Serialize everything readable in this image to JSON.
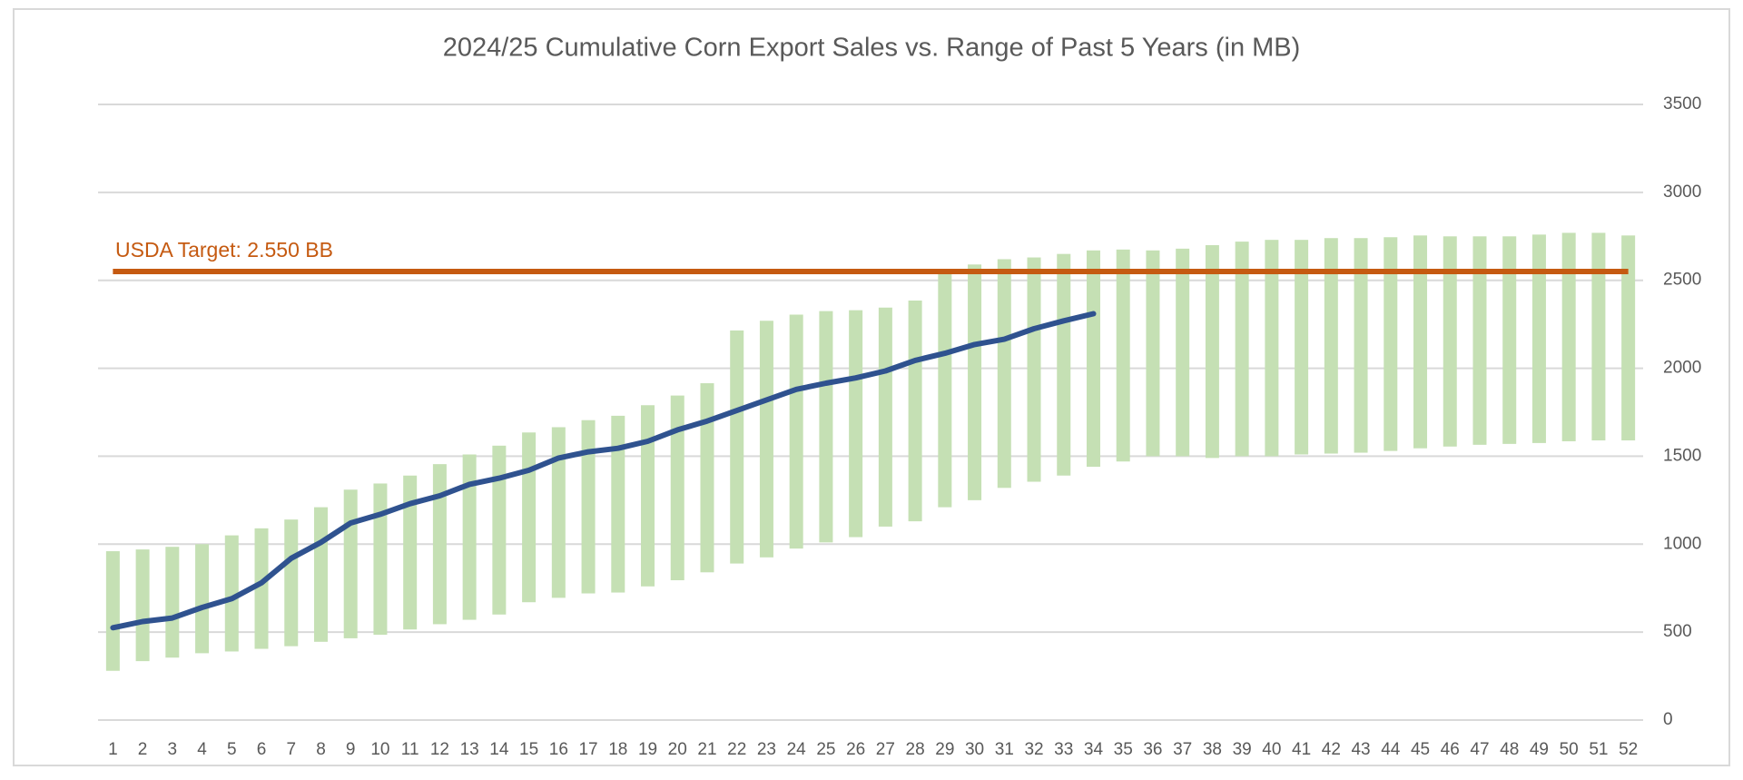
{
  "chart_data": {
    "type": "range_bar_line",
    "title": "2024/25 Cumulative Corn Export Sales vs. Range of Past 5 Years (in MB)",
    "categories": [
      1,
      2,
      3,
      4,
      5,
      6,
      7,
      8,
      9,
      10,
      11,
      12,
      13,
      14,
      15,
      16,
      17,
      18,
      19,
      20,
      21,
      22,
      23,
      24,
      25,
      26,
      27,
      28,
      29,
      30,
      31,
      32,
      33,
      34,
      35,
      36,
      37,
      38,
      39,
      40,
      41,
      42,
      43,
      44,
      45,
      46,
      47,
      48,
      49,
      50,
      51,
      52
    ],
    "range": {
      "color": "#c5e0b4",
      "low": [
        280,
        335,
        355,
        380,
        390,
        405,
        420,
        445,
        465,
        485,
        515,
        545,
        570,
        600,
        670,
        695,
        720,
        725,
        760,
        795,
        840,
        890,
        925,
        975,
        1010,
        1040,
        1100,
        1130,
        1210,
        1250,
        1320,
        1355,
        1390,
        1440,
        1470,
        1500,
        1500,
        1490,
        1500,
        1500,
        1510,
        1515,
        1520,
        1530,
        1545,
        1555,
        1565,
        1570,
        1575,
        1585,
        1590,
        1590
      ],
      "high": [
        960,
        970,
        985,
        1000,
        1050,
        1090,
        1140,
        1210,
        1310,
        1345,
        1390,
        1455,
        1510,
        1560,
        1635,
        1665,
        1705,
        1730,
        1790,
        1845,
        1915,
        2215,
        2270,
        2305,
        2325,
        2330,
        2345,
        2385,
        2550,
        2590,
        2620,
        2630,
        2650,
        2670,
        2675,
        2670,
        2680,
        2700,
        2720,
        2730,
        2730,
        2740,
        2740,
        2745,
        2755,
        2750,
        2750,
        2750,
        2760,
        2770,
        2770,
        2755
      ]
    },
    "line": {
      "color": "#2f528f",
      "values": [
        525,
        560,
        580,
        640,
        690,
        780,
        920,
        1010,
        1120,
        1170,
        1230,
        1275,
        1340,
        1375,
        1420,
        1490,
        1525,
        1545,
        1585,
        1650,
        1700,
        1760,
        1820,
        1880,
        1915,
        1945,
        1985,
        2045,
        2085,
        2135,
        2165,
        2225,
        2270,
        2310
      ]
    },
    "target": {
      "value": 2550,
      "label": "USDA Target: 2.550 BB",
      "color": "#c55a11"
    },
    "ylim": [
      0,
      3500
    ],
    "yticks": [
      0,
      500,
      1000,
      1500,
      2000,
      2500,
      3000,
      3500
    ],
    "y_axis_side": "right",
    "grid": true
  }
}
